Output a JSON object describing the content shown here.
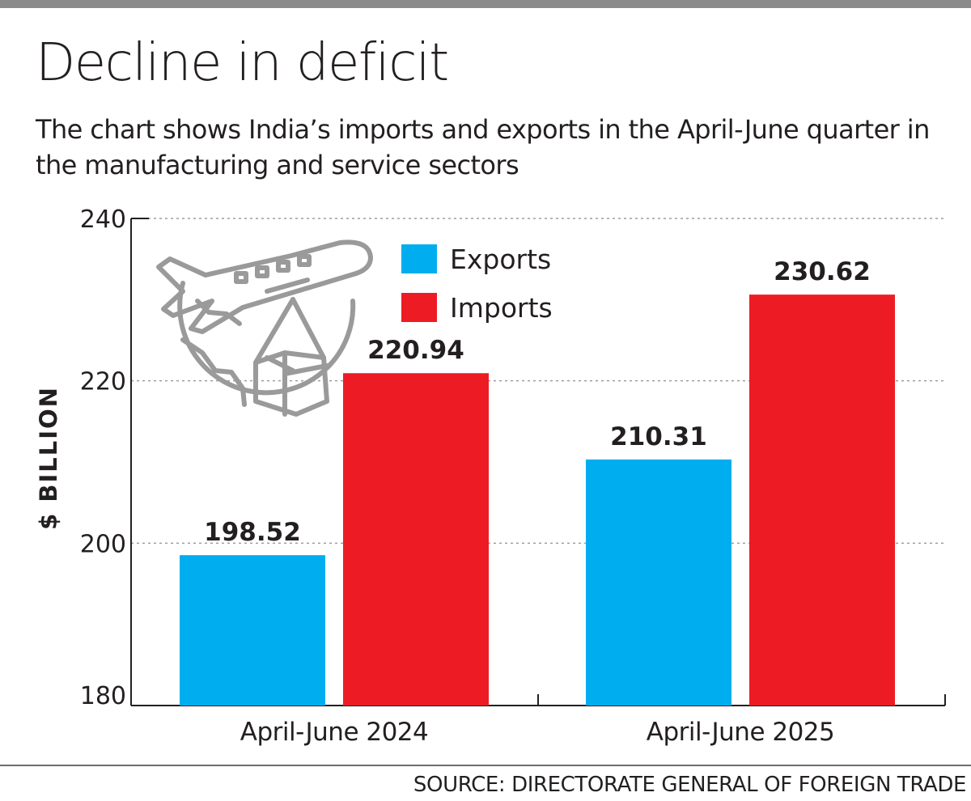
{
  "title": "Decline in deficit",
  "subtitle": "The chart shows India’s imports and exports in the April-June quarter in the manufacturing and service sectors",
  "source": "SOURCE: DIRECTORATE GENERAL OF FOREIGN TRADE",
  "chart_data": {
    "type": "bar",
    "title": "Decline in deficit",
    "ylabel": "$ BILLION",
    "xlabel": "",
    "ylim": [
      180,
      240
    ],
    "yticks": [
      180,
      200,
      220,
      240
    ],
    "grid": true,
    "legend_position": "top-center",
    "categories": [
      "April-June 2024",
      "April-June 2025"
    ],
    "series": [
      {
        "name": "Exports",
        "color": "#00aeef",
        "values": [
          198.52,
          210.31
        ],
        "labels": [
          "198.52",
          "210.31"
        ]
      },
      {
        "name": "Imports",
        "color": "#ed1c24",
        "values": [
          220.94,
          230.62
        ],
        "labels": [
          "220.94",
          "230.62"
        ]
      }
    ],
    "decoration_icon": "airplane-globe-cargo-icon"
  }
}
